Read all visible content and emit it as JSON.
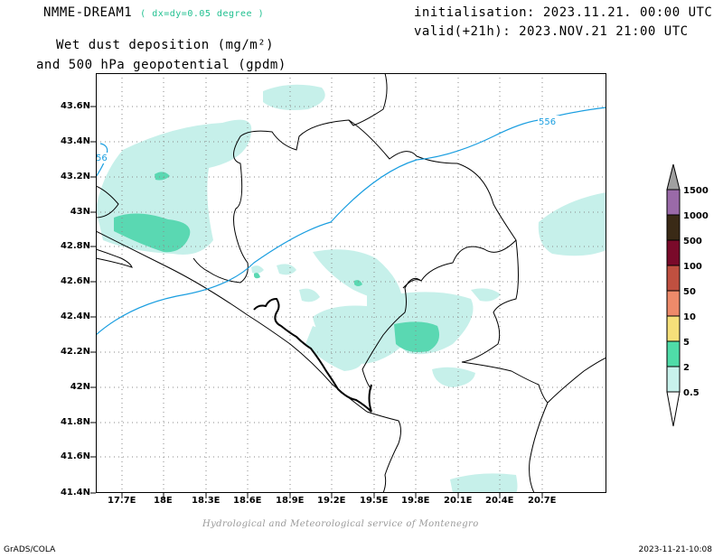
{
  "header": {
    "model": "NMME-DREAM1",
    "resolution": "( dx=dy=0.05 degree )",
    "init": "initialisation: 2023.11.21. 00:00 UTC",
    "valid": "valid(+21h): 2023.NOV.21 21:00 UTC",
    "title_line1": "Wet dust deposition (mg/m²)",
    "title_line2": "and 500 hPa geopotential (gpdm)"
  },
  "axes": {
    "lat_labels": [
      "43.6N",
      "43.4N",
      "43.2N",
      "43N",
      "42.8N",
      "42.6N",
      "42.4N",
      "42.2N",
      "42N",
      "41.8N",
      "41.6N",
      "41.4N"
    ],
    "lon_labels": [
      "17.7E",
      "18E",
      "18.3E",
      "18.6E",
      "18.9E",
      "19.2E",
      "19.5E",
      "19.8E",
      "20.1E",
      "20.4E",
      "20.7E"
    ]
  },
  "contours": {
    "label_right": "556",
    "label_left": "56",
    "color": "#1a9ee0"
  },
  "legend": {
    "levels": [
      "1500",
      "1000",
      "500",
      "100",
      "50",
      "10",
      "5",
      "2",
      "0.5"
    ],
    "colors": [
      "#a0a0a0",
      "#9a6aa8",
      "#3a2a16",
      "#7a0a2a",
      "#c05040",
      "#ee8a6a",
      "#f6e07a",
      "#4fdca8",
      "#c8f2ec",
      "#ffffff"
    ]
  },
  "colors": {
    "dust_light": "#c6f0ea",
    "dust_medium": "#5ad8b2",
    "grid": "#8a8a8a"
  },
  "credit": "Hydrological and Meteorological service of Montenegro",
  "footer": {
    "left": "GrADS/COLA",
    "right": "2023-11-21-10:08"
  }
}
